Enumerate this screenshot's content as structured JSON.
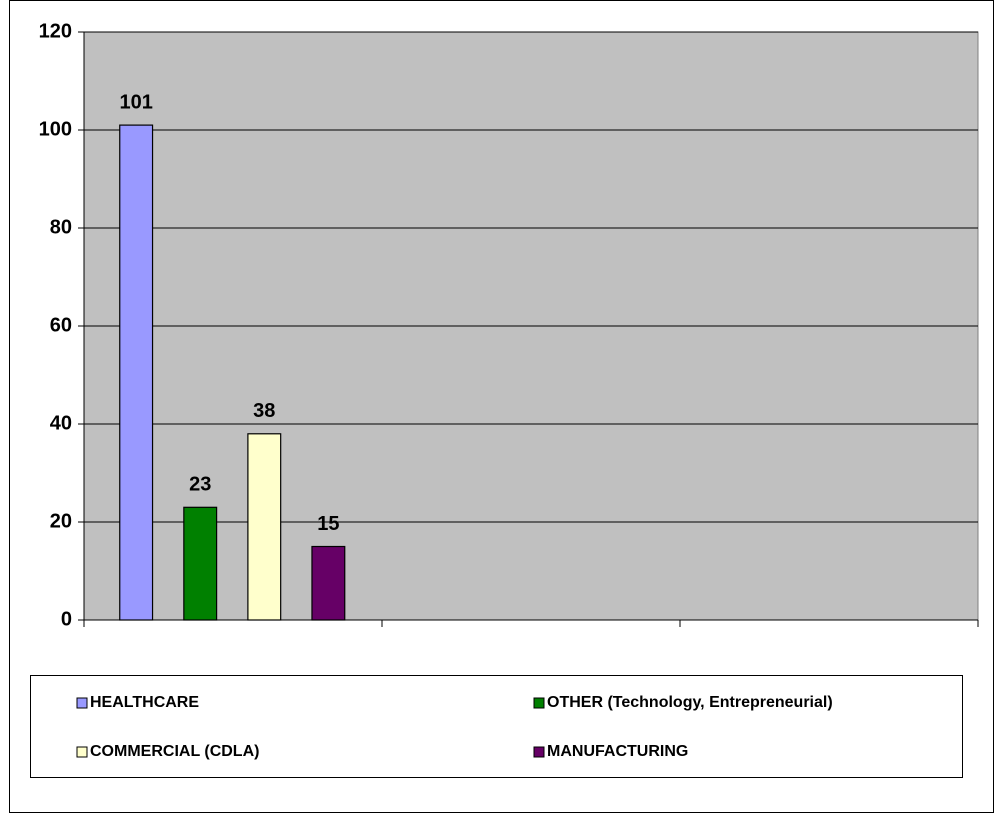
{
  "chart_data": {
    "type": "bar",
    "categories": [
      null,
      null,
      null
    ],
    "series": [
      {
        "name": "HEALTHCARE",
        "color": "#9999ff",
        "values": [
          101,
          null,
          null
        ]
      },
      {
        "name": "OTHER (Technology, Entrepreneurial)",
        "color": "#008000",
        "values": [
          23,
          null,
          null
        ]
      },
      {
        "name": "COMMERCIAL (CDLA)",
        "color": "#ffffcc",
        "values": [
          38,
          null,
          null
        ]
      },
      {
        "name": "MANUFACTURING",
        "color": "#660066",
        "values": [
          15,
          null,
          null
        ]
      }
    ],
    "ylim": [
      0,
      120
    ],
    "yticks": [
      0,
      20,
      40,
      60,
      80,
      100,
      120
    ],
    "grid": true,
    "legend": "bottom",
    "plot_background": "#c0c0c0"
  }
}
